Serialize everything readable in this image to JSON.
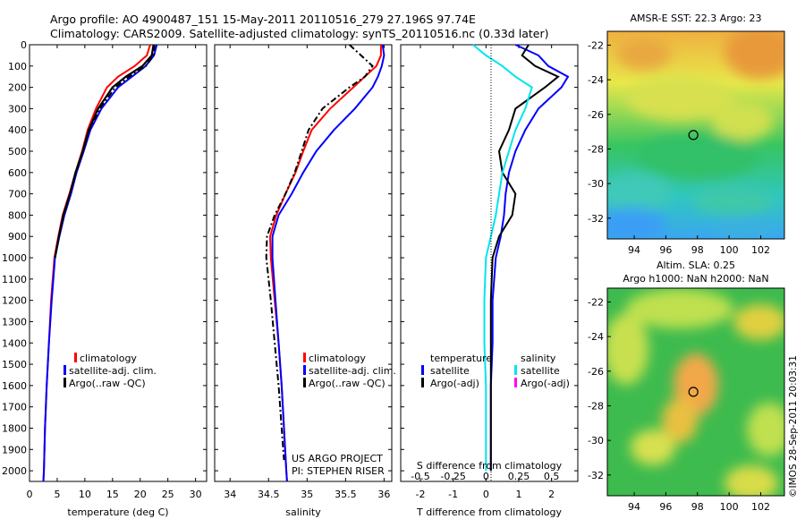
{
  "header": {
    "line1": "Argo profile: AO 4900487_151 15-May-2011 20110516_279 27.196S 97.74E",
    "line2": "Climatology: CARS2009. Satellite-adjusted climatology: synTS_20110516.nc (0.33d later)"
  },
  "map1": {
    "title": "AMSR-E SST: 22.3 Argo: 23",
    "xticks": [
      "94",
      "96",
      "98",
      "100",
      "102"
    ],
    "yticks": [
      "-22",
      "-24",
      "-26",
      "-28",
      "-30",
      "-32"
    ],
    "marker": {
      "lon": 97.74,
      "lat": -27.196
    }
  },
  "map2": {
    "title_line1": "Altim. SLA: 0.25",
    "title_line2": "Argo h1000: NaN h2000: NaN",
    "xticks": [
      "94",
      "96",
      "98",
      "100",
      "102"
    ],
    "yticks": [
      "-22",
      "-24",
      "-26",
      "-28",
      "-30",
      "-32"
    ],
    "marker": {
      "lon": 97.74,
      "lat": -27.196
    }
  },
  "footer": {
    "stamp": "©IMOS 28-Sep-2011 20:03:31"
  },
  "colors": {
    "climatology": "#ff0000",
    "satellite": "#0000ff",
    "argo": "#000000",
    "salinity_satellite": "#00e5ee",
    "salinity_argo": "#ff00ff"
  },
  "chart_data": [
    {
      "type": "line",
      "xlabel": "temperature (deg C)",
      "xlim": [
        0,
        32
      ],
      "xticks": [
        "0",
        "5",
        "10",
        "15",
        "20",
        "25",
        "30"
      ],
      "ylim": [
        2050,
        0
      ],
      "yticks": [
        "0",
        "100",
        "200",
        "300",
        "400",
        "500",
        "600",
        "700",
        "800",
        "900",
        "1000",
        "1100",
        "1200",
        "1300",
        "1400",
        "1500",
        "1600",
        "1700",
        "1800",
        "1900",
        "2000"
      ],
      "legend": [
        "climatology",
        "satellite-adj. clim.",
        "Argo(..raw -QC)"
      ],
      "series": [
        {
          "name": "climatology",
          "style": "solid",
          "color": "#ff0000",
          "depth": [
            0,
            50,
            100,
            150,
            200,
            300,
            400,
            500,
            600,
            700,
            800,
            900,
            1000,
            1200,
            1400,
            1600,
            1800,
            2000,
            2050
          ],
          "values": [
            21.8,
            21.2,
            19,
            16,
            14,
            12,
            10.5,
            9.5,
            8.3,
            7.2,
            6,
            5.2,
            4.5,
            3.9,
            3.5,
            3.1,
            2.8,
            2.6,
            2.5
          ]
        },
        {
          "name": "satellite-adj. clim.",
          "style": "solid",
          "color": "#0000ff",
          "depth": [
            0,
            50,
            100,
            150,
            200,
            300,
            400,
            500,
            600,
            700,
            800,
            900,
            1000,
            1200,
            1400,
            1600,
            1800,
            2000,
            2050
          ],
          "values": [
            23,
            22.5,
            21,
            18.5,
            16,
            13,
            11,
            9.8,
            8.5,
            7.5,
            6.3,
            5.4,
            4.6,
            4.0,
            3.5,
            3.1,
            2.8,
            2.6,
            2.5
          ]
        },
        {
          "name": "Argo(..raw -QC)",
          "style": "dashdot",
          "color": "#000000",
          "depth": [
            0,
            50,
            100,
            150,
            200,
            300,
            400,
            500,
            600,
            700,
            800,
            900,
            1000
          ],
          "values": [
            22.6,
            22.4,
            21,
            18,
            15.5,
            12.7,
            10.8,
            9.7,
            8.4,
            7.3,
            6.2,
            5.3,
            4.6
          ]
        },
        {
          "name": "Argo",
          "style": "solid",
          "color": "#000000",
          "depth": [
            0,
            50,
            100,
            150,
            200,
            300,
            400,
            500,
            600,
            700,
            800,
            900,
            1000
          ],
          "values": [
            22.4,
            22.1,
            20.4,
            17.4,
            15,
            12.4,
            10.7,
            9.6,
            8.3,
            7.3,
            6.1,
            5.3,
            4.6
          ]
        }
      ]
    },
    {
      "type": "line",
      "xlabel": "salinity",
      "xlim": [
        33.8,
        36.1
      ],
      "xticks": [
        "34",
        "34.5",
        "35",
        "35.5",
        "36"
      ],
      "ylim": [
        2050,
        0
      ],
      "legend": [
        "climatology",
        "satellite-adj. clim.",
        "Argo(..raw -QC)"
      ],
      "annotation": [
        "US ARGO PROJECT",
        "PI: STEPHEN RISER"
      ],
      "series": [
        {
          "name": "climatology",
          "style": "solid",
          "color": "#ff0000",
          "depth": [
            0,
            50,
            100,
            150,
            200,
            300,
            400,
            500,
            600,
            700,
            800,
            900,
            1000,
            1200,
            1400,
            1600,
            1800,
            2000,
            2050
          ],
          "values": [
            35.96,
            35.96,
            35.9,
            35.75,
            35.6,
            35.3,
            35.06,
            34.95,
            34.85,
            34.72,
            34.6,
            34.52,
            34.53,
            34.58,
            34.63,
            34.67,
            34.7,
            34.73,
            34.74
          ]
        },
        {
          "name": "satellite-adj. clim.",
          "style": "solid",
          "color": "#0000ff",
          "depth": [
            0,
            50,
            100,
            150,
            200,
            300,
            400,
            500,
            600,
            700,
            800,
            900,
            1000,
            1200,
            1400,
            1600,
            1800,
            2000,
            2050
          ],
          "values": [
            35.98,
            36.0,
            35.97,
            35.92,
            35.85,
            35.62,
            35.35,
            35.12,
            34.95,
            34.8,
            34.63,
            34.55,
            34.55,
            34.59,
            34.63,
            34.67,
            34.7,
            34.73,
            34.74
          ]
        },
        {
          "name": "Argo(..raw -QC)",
          "style": "dashdot",
          "color": "#000000",
          "depth": [
            0,
            50,
            100,
            150,
            200,
            300,
            400,
            500,
            600,
            700,
            800,
            900,
            1000,
            1200,
            1400,
            1600,
            1800,
            1950
          ],
          "values": [
            35.55,
            35.7,
            35.85,
            35.75,
            35.55,
            35.2,
            35.02,
            34.93,
            34.84,
            34.72,
            34.58,
            34.48,
            34.47,
            34.53,
            34.58,
            34.63,
            34.67,
            34.7
          ]
        }
      ]
    },
    {
      "type": "line",
      "xlabel": "T difference from climatology",
      "top_label": "S difference from climatology",
      "xlim": [
        -2.6,
        2.8
      ],
      "xticks": [
        "-2",
        "-1",
        "0",
        "1",
        "2"
      ],
      "s_xticks": [
        "-0.5",
        "-0.25",
        "0",
        "0.25",
        "0.5"
      ],
      "ylim": [
        2050,
        0
      ],
      "legend_titles": [
        "temperature",
        "salinity"
      ],
      "legend": [
        "satellite",
        "Argo(-adj)",
        "satellite",
        "Argo(-adj)"
      ],
      "series": [
        {
          "name": "temperature satellite",
          "style": "solid",
          "color": "#0000ff",
          "depth": [
            0,
            50,
            100,
            150,
            200,
            300,
            400,
            500,
            600,
            700,
            800,
            900,
            1000,
            1200,
            1400,
            1600,
            1800,
            2000
          ],
          "values": [
            0.9,
            1.6,
            1.9,
            2.5,
            2.3,
            1.6,
            1.2,
            0.9,
            0.7,
            0.6,
            0.55,
            0.45,
            0.3,
            0.2,
            0.2,
            0.15,
            0.15,
            0.15
          ]
        },
        {
          "name": "temperature Argo(-adj)",
          "style": "solid",
          "color": "#000000",
          "depth": [
            0,
            50,
            100,
            150,
            200,
            300,
            400,
            500,
            600,
            700,
            800,
            900,
            1000,
            1200,
            1400,
            1600,
            1800,
            2000
          ],
          "values": [
            1.3,
            1.1,
            1.5,
            2.2,
            1.8,
            0.9,
            0.7,
            0.4,
            0.5,
            0.9,
            0.8,
            0.4,
            0.2,
            0.15,
            0.15,
            0.15,
            0.15,
            0.15
          ]
        },
        {
          "name": "salinity satellite",
          "style": "solid",
          "color": "#00e5ee",
          "depth": [
            0,
            50,
            100,
            150,
            200,
            300,
            400,
            500,
            600,
            700,
            800,
            900,
            1000,
            1200,
            1400,
            1600,
            1800,
            2000
          ],
          "values": [
            -0.4,
            0.0,
            0.5,
            0.9,
            1.4,
            1.2,
            0.9,
            0.7,
            0.5,
            0.4,
            0.3,
            0.15,
            0.0,
            -0.05,
            -0.05,
            0.0,
            0.0,
            0.0
          ]
        }
      ]
    }
  ]
}
